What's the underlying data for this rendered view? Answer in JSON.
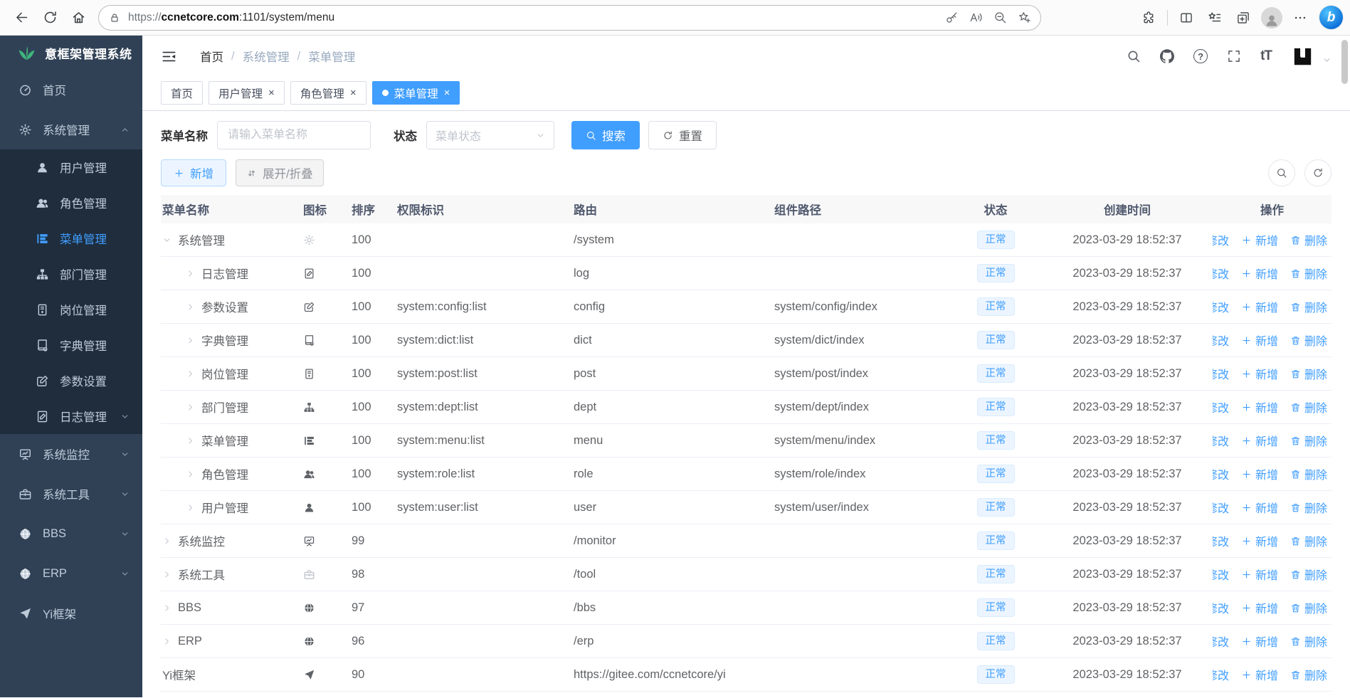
{
  "browser": {
    "url_scheme": "https://",
    "url_host": "ccnetcore.com",
    "url_rest": ":1101/system/menu",
    "bing_glyph": "b"
  },
  "sidebar": {
    "logo_title": "意框架管理系统",
    "items": [
      {
        "label": "首页",
        "icon": "dashboard-icon",
        "level": "top"
      },
      {
        "label": "系统管理",
        "icon": "gear-icon",
        "level": "top",
        "chevron": "up"
      },
      {
        "label": "用户管理",
        "icon": "user-icon",
        "level": "sub"
      },
      {
        "label": "角色管理",
        "icon": "users-icon",
        "level": "sub"
      },
      {
        "label": "菜单管理",
        "icon": "menu-tree-icon",
        "level": "sub",
        "active": true
      },
      {
        "label": "部门管理",
        "icon": "sitemap-icon",
        "level": "sub"
      },
      {
        "label": "岗位管理",
        "icon": "idcard-icon",
        "level": "sub"
      },
      {
        "label": "字典管理",
        "icon": "book-icon",
        "level": "sub"
      },
      {
        "label": "参数设置",
        "icon": "edit-icon",
        "level": "sub"
      },
      {
        "label": "日志管理",
        "icon": "log-icon",
        "level": "sub",
        "chevron": "down"
      },
      {
        "label": "系统监控",
        "icon": "monitor-icon",
        "level": "top",
        "chevron": "down"
      },
      {
        "label": "系统工具",
        "icon": "toolbox-icon",
        "level": "top",
        "chevron": "down"
      },
      {
        "label": "BBS",
        "icon": "globe-icon",
        "level": "top",
        "chevron": "down"
      },
      {
        "label": "ERP",
        "icon": "globe-icon",
        "level": "top",
        "chevron": "down"
      },
      {
        "label": "Yi框架",
        "icon": "plane-icon",
        "level": "top"
      }
    ]
  },
  "header": {
    "breadcrumb": [
      "首页",
      "系统管理",
      "菜单管理"
    ],
    "separator": "/",
    "help_glyph": "?",
    "fontsize_glyph": "tT"
  },
  "tabs": {
    "close_glyph": "×",
    "items": [
      {
        "label": "首页",
        "closable": false,
        "active": false
      },
      {
        "label": "用户管理",
        "closable": true,
        "active": false
      },
      {
        "label": "角色管理",
        "closable": true,
        "active": false
      },
      {
        "label": "菜单管理",
        "closable": true,
        "active": true
      }
    ]
  },
  "filters": {
    "name_label": "菜单名称",
    "name_placeholder": "请输入菜单名称",
    "name_value": "",
    "status_label": "状态",
    "status_placeholder": "菜单状态",
    "search_label": "搜索",
    "reset_label": "重置"
  },
  "toolbar": {
    "add_label": "新增",
    "toggle_label": "展开/折叠"
  },
  "table": {
    "columns": [
      "菜单名称",
      "图标",
      "排序",
      "权限标识",
      "路由",
      "组件路径",
      "状态",
      "创建时间",
      "操作"
    ],
    "actions": {
      "edit": "修改",
      "add": "新增",
      "delete": "删除"
    },
    "rows": [
      {
        "name": "系统管理",
        "icon": "gear-icon",
        "muted": true,
        "sort": "100",
        "perms": "",
        "route": "/system",
        "component": "",
        "level": 0,
        "expand": "open",
        "status": "正常",
        "created": "2023-03-29 18:52:37"
      },
      {
        "name": "日志管理",
        "icon": "log-icon",
        "muted": false,
        "sort": "100",
        "perms": "",
        "route": "log",
        "component": "",
        "level": 1,
        "expand": "closed",
        "status": "正常",
        "created": "2023-03-29 18:52:37"
      },
      {
        "name": "参数设置",
        "icon": "edit-icon",
        "muted": false,
        "sort": "100",
        "perms": "system:config:list",
        "route": "config",
        "component": "system/config/index",
        "level": 1,
        "expand": "closed",
        "status": "正常",
        "created": "2023-03-29 18:52:37"
      },
      {
        "name": "字典管理",
        "icon": "book-icon",
        "muted": false,
        "sort": "100",
        "perms": "system:dict:list",
        "route": "dict",
        "component": "system/dict/index",
        "level": 1,
        "expand": "closed",
        "status": "正常",
        "created": "2023-03-29 18:52:37"
      },
      {
        "name": "岗位管理",
        "icon": "idcard-icon",
        "muted": false,
        "sort": "100",
        "perms": "system:post:list",
        "route": "post",
        "component": "system/post/index",
        "level": 1,
        "expand": "closed",
        "status": "正常",
        "created": "2023-03-29 18:52:37"
      },
      {
        "name": "部门管理",
        "icon": "sitemap-icon",
        "muted": false,
        "sort": "100",
        "perms": "system:dept:list",
        "route": "dept",
        "component": "system/dept/index",
        "level": 1,
        "expand": "closed",
        "status": "正常",
        "created": "2023-03-29 18:52:37"
      },
      {
        "name": "菜单管理",
        "icon": "menu-tree-icon",
        "muted": false,
        "sort": "100",
        "perms": "system:menu:list",
        "route": "menu",
        "component": "system/menu/index",
        "level": 1,
        "expand": "closed",
        "status": "正常",
        "created": "2023-03-29 18:52:37"
      },
      {
        "name": "角色管理",
        "icon": "users-icon",
        "muted": false,
        "sort": "100",
        "perms": "system:role:list",
        "route": "role",
        "component": "system/role/index",
        "level": 1,
        "expand": "closed",
        "status": "正常",
        "created": "2023-03-29 18:52:37"
      },
      {
        "name": "用户管理",
        "icon": "user-icon",
        "muted": false,
        "sort": "100",
        "perms": "system:user:list",
        "route": "user",
        "component": "system/user/index",
        "level": 1,
        "expand": "closed",
        "status": "正常",
        "created": "2023-03-29 18:52:37"
      },
      {
        "name": "系统监控",
        "icon": "monitor-icon",
        "muted": false,
        "sort": "99",
        "perms": "",
        "route": "/monitor",
        "component": "",
        "level": 0,
        "expand": "closed",
        "status": "正常",
        "created": "2023-03-29 18:52:37"
      },
      {
        "name": "系统工具",
        "icon": "toolbox-icon",
        "muted": true,
        "sort": "98",
        "perms": "",
        "route": "/tool",
        "component": "",
        "level": 0,
        "expand": "closed",
        "status": "正常",
        "created": "2023-03-29 18:52:37"
      },
      {
        "name": "BBS",
        "icon": "globe-icon",
        "muted": false,
        "sort": "97",
        "perms": "",
        "route": "/bbs",
        "component": "",
        "level": 0,
        "expand": "closed",
        "status": "正常",
        "created": "2023-03-29 18:52:37"
      },
      {
        "name": "ERP",
        "icon": "globe-icon",
        "muted": false,
        "sort": "96",
        "perms": "",
        "route": "/erp",
        "component": "",
        "level": 0,
        "expand": "closed",
        "status": "正常",
        "created": "2023-03-29 18:52:37"
      },
      {
        "name": "Yi框架",
        "icon": "plane-icon",
        "muted": false,
        "sort": "90",
        "perms": "",
        "route": "https://gitee.com/ccnetcore/yi",
        "component": "",
        "level": 0,
        "expand": "none",
        "status": "正常",
        "created": "2023-03-29 18:52:37"
      }
    ]
  },
  "colors": {
    "accent": "#409eff",
    "sidebar_bg": "#304156",
    "submenu_bg": "#1f2d3d",
    "badge_bg": "#ecf5ff",
    "badge_text": "#409eff"
  }
}
